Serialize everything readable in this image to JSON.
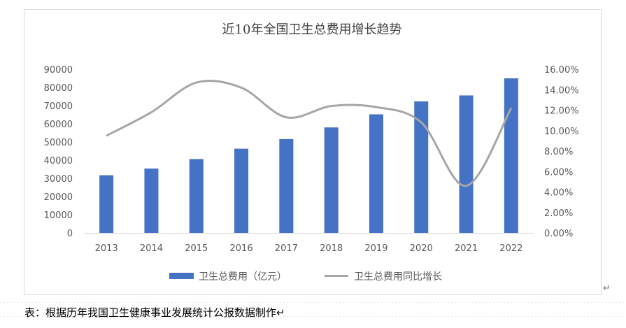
{
  "chart_data": {
    "type": "bar",
    "title": "近10年全国卫生总费用增长趋势",
    "categories": [
      "2013",
      "2014",
      "2015",
      "2016",
      "2017",
      "2018",
      "2019",
      "2020",
      "2021",
      "2022"
    ],
    "series": [
      {
        "name": "卫生总费用（亿元）",
        "type": "bar",
        "axis": "left",
        "color": "#4472c4",
        "values": [
          31700,
          35400,
          40600,
          46300,
          51600,
          58000,
          65200,
          72300,
          75600,
          85000
        ]
      },
      {
        "name": "卫生总费用同比增长",
        "type": "line",
        "axis": "right",
        "color": "#a6a6a6",
        "values": [
          9.5,
          11.8,
          14.7,
          14.2,
          11.3,
          12.4,
          12.3,
          10.8,
          4.6,
          12.2
        ]
      }
    ],
    "y_left": {
      "ylim": [
        0,
        90000
      ],
      "ticks": [
        "0",
        "10000",
        "20000",
        "30000",
        "40000",
        "50000",
        "60000",
        "70000",
        "80000",
        "90000"
      ]
    },
    "y_right": {
      "ylim": [
        0,
        16
      ],
      "ticks": [
        "0.00%",
        "2.00%",
        "4.00%",
        "6.00%",
        "8.00%",
        "10.00%",
        "12.00%",
        "14.00%",
        "16.00%"
      ]
    },
    "grid": false,
    "legend_position": "bottom"
  },
  "caption": "表：根据历年我国卫生健康事业发展统计公报数据制作↵",
  "end_mark": "↵"
}
